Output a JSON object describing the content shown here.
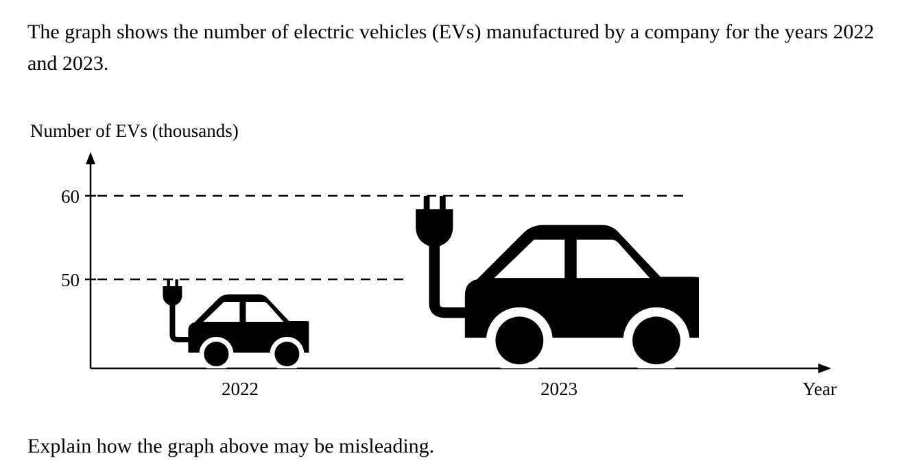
{
  "intro_text": "The graph shows the number of electric vehicles (EVs) manufactured by a company for the years 2022 and 2023.",
  "question_text": "Explain how the graph above may be misleading.",
  "chart_data": {
    "type": "bar",
    "title": "",
    "ylabel": "Number of EVs (thousands)",
    "xlabel": "Year",
    "categories": [
      "2022",
      "2023"
    ],
    "values": [
      50,
      60
    ],
    "y_ticks": [
      50,
      60
    ],
    "y_tick_labels": [
      "50",
      "60"
    ],
    "ylim": [
      40,
      65
    ],
    "grid": false,
    "reference_lines": "dashed at each value",
    "mark_style": "pictogram (electric car with plug), scaled in both width and height",
    "colors": {
      "mark": "#000000",
      "axis": "#000000",
      "background": "#ffffff"
    }
  }
}
